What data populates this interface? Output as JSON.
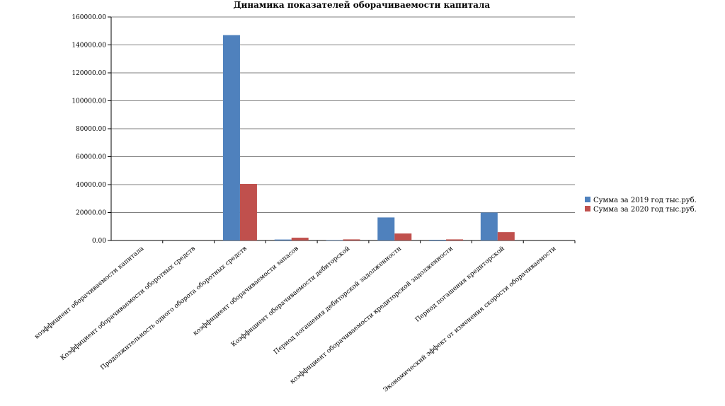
{
  "chart_data": {
    "type": "bar",
    "title": "Динамика показателей оборачиваемости капитала",
    "xlabel": "",
    "ylabel": "",
    "ylim": [
      0,
      160000
    ],
    "ytick_values": [
      0,
      20000,
      40000,
      60000,
      80000,
      100000,
      120000,
      140000,
      160000
    ],
    "ytick_labels": [
      "0.00",
      "20000.00",
      "40000.00",
      "60000.00",
      "80000.00",
      "100000.00",
      "120000.00",
      "140000.00",
      "160000.00"
    ],
    "grid": true,
    "legend_position": "right",
    "categories": [
      "коэффициент оборачиваемости капитала",
      "Коэффициент оборачиваемости оборотных средств",
      "Продолжительность одного оборота оборотных средств",
      "коэффициент оборачиваемости запасов",
      "Коэффициент оборачиваемости дебиторской",
      "Период погашения дебиторской задолженности",
      "коэффициент оборачиваемости кредиторской задолженности",
      "Период погашения кредиторской",
      "Экономический эффект от изменения скорости оборачиваемости"
    ],
    "series": [
      {
        "name": "Сумма за 2019 год тыс.руб.",
        "color": "#4f81bd",
        "values": [
          1,
          3,
          147000,
          700,
          300,
          16500,
          500,
          20000,
          0
        ]
      },
      {
        "name": "Сумма за 2020 год тыс.руб.",
        "color": "#c0504d",
        "values": [
          2,
          4,
          40500,
          2000,
          800,
          5000,
          800,
          6000,
          0
        ]
      }
    ]
  }
}
